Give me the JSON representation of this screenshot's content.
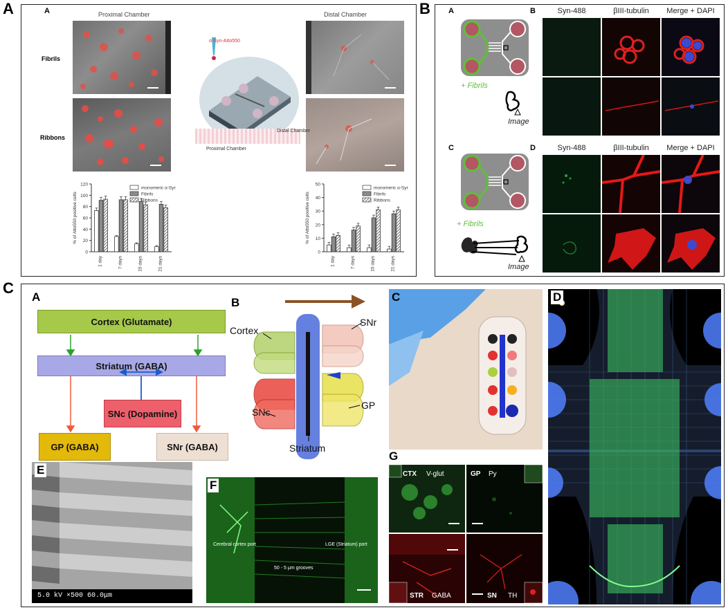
{
  "figure": {
    "panel_a": {
      "letter": "A",
      "sub_letter": "A",
      "proximal_title": "Proximal Chamber",
      "distal_title": "Distal Chamber",
      "row_fibrils": "Fibrils",
      "row_ribbons": "Ribbons",
      "probe_label": "α-Syn-Atto550",
      "diagram_proximal": "Proximal Chamber",
      "diagram_distal": "Distal Chamber"
    },
    "panel_b": {
      "letter": "B",
      "sub_a": "A",
      "sub_b": "B",
      "sub_c": "C",
      "sub_d": "D",
      "fibrils_label_1": "+ Fibrils",
      "fibrils_label_2": "+ Fibrils",
      "image_label_1": "Image",
      "image_label_2": "Image",
      "col_heads_top": [
        "Syn-488",
        "βIII-tubulin",
        "Merge + DAPI"
      ],
      "col_heads_bottom": [
        "Syn-488",
        "βIII-tubulin",
        "Merge + DAPI"
      ]
    },
    "panel_c": {
      "letter": "C",
      "sub_a": "A",
      "sub_b": "B",
      "sub_c": "C",
      "sub_d": "D",
      "sub_e": "E",
      "sub_f": "F",
      "sub_g": "G",
      "flow": {
        "cortex": "Cortex (Glutamate)",
        "striatum": "Striatum (GABA)",
        "snc": "SNc (Dopamine)",
        "gp": "GP (GABA)",
        "snr": "SNr (GABA)"
      },
      "model_labels": {
        "cortex": "Cortex",
        "snr": "SNr",
        "snc": "SNc",
        "gp": "GP",
        "striatum": "Striatum"
      },
      "sem_caption": "5.0 kV  ×500  60.0μm",
      "f_labels": {
        "left": "Cerebral cortex port",
        "right": "LGE (Striatum) port",
        "middle": "50 - 5 μm grooves"
      },
      "g_labels": {
        "ctx": "CTX",
        "vglut": "V-glut",
        "gp": "GP",
        "py": "Py",
        "str": "STR",
        "gaba": "GABA",
        "sn": "SN",
        "th": "TH"
      }
    },
    "colors": {
      "fibril_green": "#5fbf3a",
      "flow_cortex": "#a6c94a",
      "flow_striatum": "#a8a8e6",
      "flow_snc": "#ee5f6c",
      "flow_gp": "#e3b90a",
      "flow_snr": "#eedfd3"
    }
  },
  "chart_data": [
    {
      "type": "bar",
      "title": "",
      "ylabel": "% of Atto550 positive cells",
      "categories": [
        "1 day",
        "7 days",
        "15 days",
        "21 days"
      ],
      "ylim": [
        0,
        120
      ],
      "yticks": [
        0,
        20,
        40,
        60,
        80,
        100,
        120
      ],
      "series": [
        {
          "name": "monomeric α-Syn",
          "values": [
            73,
            27,
            14,
            9
          ]
        },
        {
          "name": "Fibrils",
          "values": [
            91,
            92,
            89,
            84
          ]
        },
        {
          "name": "Ribbons",
          "values": [
            93,
            92,
            83,
            78
          ]
        }
      ],
      "legend": "top-right"
    },
    {
      "type": "bar",
      "title": "",
      "ylabel": "% of Atto550 positive cells",
      "categories": [
        "1 day",
        "7 days",
        "15 days",
        "21 days"
      ],
      "ylim": [
        0,
        50
      ],
      "yticks": [
        0,
        10,
        20,
        30,
        40,
        50
      ],
      "series": [
        {
          "name": "monomeric α-Syn",
          "values": [
            5,
            3,
            3,
            2
          ]
        },
        {
          "name": "Fibrils",
          "values": [
            11,
            16,
            25,
            28
          ]
        },
        {
          "name": "Ribbons",
          "values": [
            12,
            19,
            31,
            31
          ]
        }
      ],
      "legend": "top-right"
    }
  ]
}
